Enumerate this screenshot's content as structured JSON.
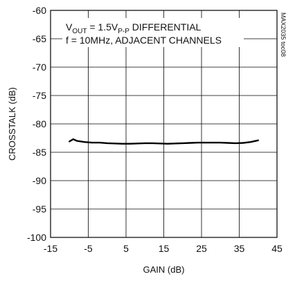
{
  "chart_data": {
    "type": "line",
    "title": "",
    "xlabel": "GAIN (dB)",
    "ylabel": "CROSSTALK (dB)",
    "xlim": [
      -15,
      45
    ],
    "ylim": [
      -100,
      -60
    ],
    "xticks": [
      -15,
      -5,
      5,
      15,
      25,
      35,
      45
    ],
    "yticks": [
      -60,
      -65,
      -70,
      -75,
      -80,
      -85,
      -90,
      -95,
      -100
    ],
    "grid": true,
    "annotation_line1": {
      "prefix": "V",
      "sub1": "OUT",
      "mid": " = 1.5V",
      "sub2": "P-P",
      "suffix": " DIFFERENTIAL"
    },
    "annotation_line2": "f = 10MHz, ADJACENT CHANNELS",
    "figure_code": "MAX2035 toc08",
    "color": "#000000",
    "series": [
      {
        "x": [
          -10,
          -9,
          -8,
          -6,
          -4,
          -2,
          0,
          2,
          4,
          6,
          8,
          10,
          12,
          14,
          16,
          18,
          20,
          22,
          24,
          26,
          28,
          30,
          32,
          34,
          36,
          38,
          40
        ],
        "y": [
          -83.1,
          -82.7,
          -83.0,
          -83.2,
          -83.3,
          -83.3,
          -83.4,
          -83.45,
          -83.5,
          -83.5,
          -83.45,
          -83.4,
          -83.4,
          -83.45,
          -83.5,
          -83.45,
          -83.4,
          -83.35,
          -83.3,
          -83.3,
          -83.3,
          -83.3,
          -83.35,
          -83.4,
          -83.35,
          -83.2,
          -82.9
        ]
      }
    ]
  }
}
